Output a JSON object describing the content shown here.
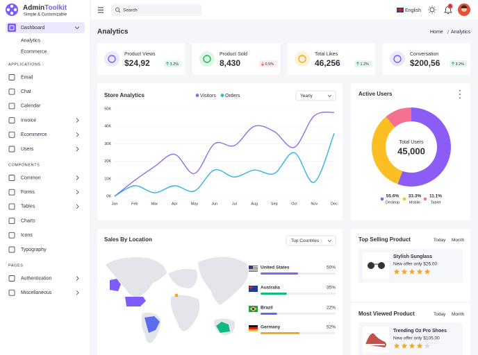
{
  "brand": {
    "name": "Admin",
    "name_accent": "Toolkit",
    "tagline": "Simple & Customizable"
  },
  "sidebar": [
    {
      "items": [
        {
          "label": "Dashboard",
          "active": true,
          "expandable": true,
          "children": [
            {
              "label": "Analytics",
              "active": true
            },
            {
              "label": "Ecommerce"
            }
          ]
        }
      ]
    },
    {
      "heading": "APPLICATIONS",
      "items": [
        {
          "label": "Email"
        },
        {
          "label": "Chat"
        },
        {
          "label": "Calendar"
        },
        {
          "label": "Invoice",
          "expandable": true
        },
        {
          "label": "Ecommerce",
          "expandable": true
        },
        {
          "label": "Users",
          "expandable": true
        }
      ]
    },
    {
      "heading": "COMPONENTS",
      "items": [
        {
          "label": "Common",
          "expandable": true
        },
        {
          "label": "Forms",
          "expandable": true
        },
        {
          "label": "Tables",
          "expandable": true
        },
        {
          "label": "Charts"
        },
        {
          "label": "Icons"
        },
        {
          "label": "Typography"
        }
      ]
    },
    {
      "heading": "PAGES",
      "items": [
        {
          "label": "Authentication",
          "expandable": true
        },
        {
          "label": "Miscellaneous",
          "expandable": true
        }
      ]
    }
  ],
  "topbar": {
    "search_placeholder": "Search",
    "language": "English",
    "notification_count": 5
  },
  "page": {
    "title": "Analytics",
    "breadcrumb": [
      "Home",
      "Analytics"
    ]
  },
  "stats": [
    {
      "label": "Product Views",
      "value": "$24,92",
      "change": "3.2%",
      "trend": "up"
    },
    {
      "label": "Product Sold",
      "value": "8,430",
      "change": "0.5%",
      "trend": "down"
    },
    {
      "label": "Total Likes",
      "value": "46,256",
      "change": "1.2%",
      "trend": "up"
    },
    {
      "label": "Conversation",
      "value": "$200,56",
      "change": "3.2%",
      "trend": "up"
    }
  ],
  "chart_data": [
    {
      "type": "line",
      "title": "Store Analytics",
      "dropdown": "Yearly",
      "categories": [
        "Jan",
        "Feb",
        "Mar",
        "Apr",
        "May",
        "Jun",
        "Jul",
        "Aug",
        "Sep",
        "Oct",
        "Nov",
        "Dec"
      ],
      "series": [
        {
          "name": "Visitors",
          "color": "#8e6cf0",
          "values": [
            0,
            9000,
            17000,
            24000,
            13000,
            30000,
            29000,
            40000,
            37000,
            28000,
            46000,
            48000
          ]
        },
        {
          "name": "Orders",
          "color": "#2bb5e0",
          "values": [
            0,
            6000,
            2000,
            6000,
            3000,
            15000,
            11000,
            15000,
            13000,
            25000,
            8000,
            36000
          ]
        }
      ],
      "ylim": [
        0,
        50000
      ],
      "yticks": [
        {
          "value": 0,
          "label": "0K"
        },
        {
          "value": 10000,
          "label": "10K"
        },
        {
          "value": 20000,
          "label": "20K"
        },
        {
          "value": 30000,
          "label": "30K"
        },
        {
          "value": 40000,
          "label": "40K"
        },
        {
          "value": 50000,
          "label": "50K"
        }
      ],
      "grid": true
    },
    {
      "type": "pie",
      "title": "Active Users",
      "center_label": "Total Users",
      "center_value": "45,000",
      "categories": [
        "Desktop",
        "Mobile",
        "Tablet"
      ],
      "values": [
        55.6,
        33.3,
        11.1
      ],
      "value_labels": [
        "55.6%",
        "33.3%",
        "11.1%"
      ],
      "colors": [
        "#8b5cf6",
        "#fbbf24",
        "#f47191"
      ]
    },
    {
      "type": "progress",
      "title": "Sales By Location",
      "dropdown": "Top Countries",
      "categories": [
        "United States",
        "Australia",
        "Brazil",
        "Germany"
      ],
      "values": [
        50,
        35,
        22,
        52
      ],
      "value_labels": [
        "50%",
        "35%",
        "22%",
        "52%"
      ],
      "colors": [
        "#8b5cf6",
        "#10b981",
        "#5b6cf0",
        "#f5a623"
      ],
      "xlim": [
        0,
        100
      ]
    }
  ],
  "products": [
    {
      "title": "Top Selling Product",
      "tabs": [
        "Today",
        "Month"
      ],
      "name": "Stylish Sunglass",
      "offer": "New offer only $26.00",
      "rating": 5
    },
    {
      "title": "Most Viewed Product",
      "tabs": [
        "Today",
        "Month"
      ],
      "name": "Trending Oz Pro Shoes",
      "offer": "New offer only $105.00",
      "rating": 4
    }
  ]
}
